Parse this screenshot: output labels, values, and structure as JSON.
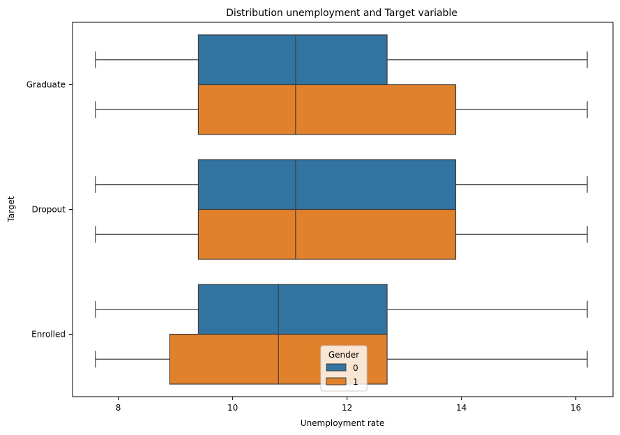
{
  "chart_data": {
    "type": "boxplot",
    "orientation": "horizontal",
    "title": "Distribution unemployment and Target variable",
    "xlabel": "Unemployment rate",
    "ylabel": "Target",
    "xlim": [
      7.2,
      16.65
    ],
    "xticks": [
      8,
      10,
      12,
      14,
      16
    ],
    "categories": [
      "Graduate",
      "Dropout",
      "Enrolled"
    ],
    "grid": false,
    "legend": {
      "title": "Gender",
      "placement": "bottom-center"
    },
    "series": [
      {
        "name": "0",
        "color": "#3274a1",
        "boxes": [
          {
            "category": "Graduate",
            "whisker_low": 7.6,
            "q1": 9.4,
            "median": 11.1,
            "q3": 12.7,
            "whisker_high": 16.2
          },
          {
            "category": "Dropout",
            "whisker_low": 7.6,
            "q1": 9.4,
            "median": 11.1,
            "q3": 13.9,
            "whisker_high": 16.2
          },
          {
            "category": "Enrolled",
            "whisker_low": 7.6,
            "q1": 9.4,
            "median": 10.8,
            "q3": 12.7,
            "whisker_high": 16.2
          }
        ]
      },
      {
        "name": "1",
        "color": "#e1812c",
        "boxes": [
          {
            "category": "Graduate",
            "whisker_low": 7.6,
            "q1": 9.4,
            "median": 11.1,
            "q3": 13.9,
            "whisker_high": 16.2
          },
          {
            "category": "Dropout",
            "whisker_low": 7.6,
            "q1": 9.4,
            "median": 11.1,
            "q3": 13.9,
            "whisker_high": 16.2
          },
          {
            "category": "Enrolled",
            "whisker_low": 7.6,
            "q1": 8.9,
            "median": 10.8,
            "q3": 12.7,
            "whisker_high": 16.2
          }
        ]
      }
    ]
  }
}
